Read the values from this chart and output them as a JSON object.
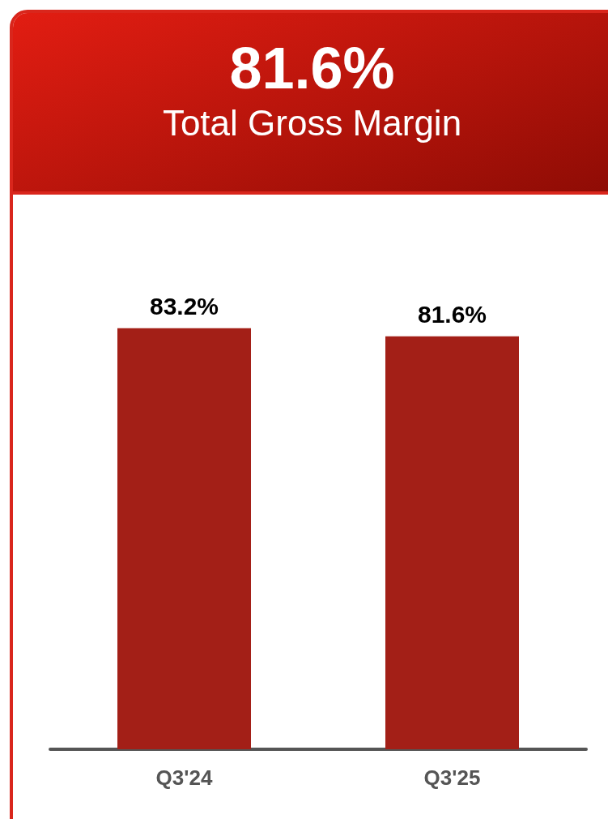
{
  "chart_data": {
    "type": "bar",
    "title": "81.6%",
    "subtitle": "Total Gross Margin",
    "categories": [
      "Q3'24",
      "Q3'25"
    ],
    "values": [
      83.2,
      81.6
    ],
    "color": "#a31f17",
    "value_labels": [
      "83.2%",
      "81.6%"
    ]
  }
}
